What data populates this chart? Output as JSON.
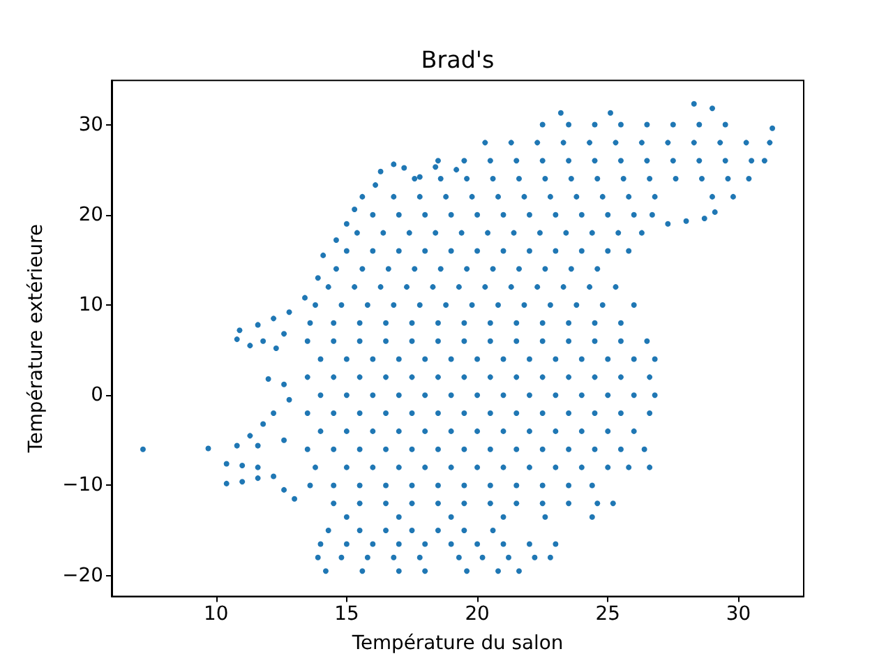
{
  "chart_data": {
    "type": "scatter",
    "title": "Brad's",
    "xlabel": "Température du salon",
    "ylabel": "Température extérieure",
    "color": "#1f77b4",
    "marker": "circle",
    "xlim": [
      6.0,
      32.5
    ],
    "ylim": [
      -22.3,
      34.9
    ],
    "xticks": [
      10,
      15,
      20,
      25,
      30
    ],
    "yticks": [
      -20,
      -10,
      0,
      10,
      20,
      30
    ],
    "x": [
      7.2,
      9.7,
      10.8,
      10.4,
      11.0,
      11.6,
      10.4,
      11.0,
      11.6,
      12.2,
      12.6,
      13.0,
      11.3,
      11.8,
      12.2,
      12.6,
      11.6,
      12.8,
      12.0,
      12.6,
      10.8,
      11.3,
      11.8,
      12.3,
      12.6,
      10.9,
      11.6,
      12.2,
      12.8,
      13.4,
      13.9,
      14.1,
      14.6,
      15.0,
      15.3,
      15.6,
      16.1,
      16.3,
      16.8,
      17.2,
      17.8,
      18.4,
      19.2,
      14.2,
      15.6,
      17.0,
      18.0,
      19.6,
      20.8,
      21.6,
      13.9,
      14.8,
      15.8,
      16.8,
      17.8,
      19.3,
      20.2,
      21.2,
      22.2,
      22.8,
      14.0,
      15.0,
      16.0,
      17.0,
      18.0,
      19.0,
      20.0,
      21.0,
      22.0,
      23.0,
      14.3,
      15.5,
      16.5,
      17.5,
      18.5,
      19.5,
      20.6,
      15.0,
      17.0,
      19.0,
      21.0,
      22.6,
      24.4,
      14.5,
      15.5,
      16.5,
      17.5,
      18.5,
      19.5,
      20.5,
      21.5,
      22.5,
      23.5,
      24.6,
      25.2,
      13.6,
      14.5,
      15.5,
      16.5,
      17.5,
      18.5,
      19.5,
      20.5,
      21.5,
      22.5,
      23.5,
      24.4,
      13.8,
      15.0,
      16.0,
      17.0,
      18.0,
      19.0,
      20.0,
      21.0,
      22.0,
      23.0,
      24.0,
      25.0,
      25.8,
      26.6,
      13.5,
      14.5,
      15.5,
      16.5,
      17.5,
      18.5,
      19.5,
      20.5,
      21.5,
      22.5,
      23.5,
      24.5,
      25.5,
      26.4,
      14.0,
      15.0,
      16.0,
      17.0,
      18.0,
      19.0,
      20.0,
      21.0,
      22.0,
      23.0,
      24.0,
      25.0,
      26.0,
      13.5,
      14.5,
      15.5,
      16.5,
      17.5,
      18.5,
      19.5,
      20.5,
      21.5,
      22.5,
      23.5,
      24.5,
      25.5,
      26.6,
      14.0,
      15.0,
      16.0,
      17.0,
      18.0,
      19.0,
      20.0,
      21.0,
      22.0,
      23.0,
      24.0,
      25.0,
      26.0,
      26.8,
      13.5,
      14.5,
      15.5,
      16.5,
      17.5,
      18.5,
      19.5,
      20.5,
      21.5,
      22.5,
      23.5,
      24.5,
      25.5,
      26.6,
      14.0,
      15.0,
      16.0,
      17.0,
      18.0,
      19.0,
      20.0,
      21.0,
      22.0,
      23.0,
      24.0,
      25.0,
      26.0,
      26.8,
      13.5,
      14.5,
      15.5,
      16.5,
      17.5,
      18.5,
      19.5,
      20.5,
      21.5,
      22.5,
      23.5,
      24.5,
      25.5,
      26.5,
      13.6,
      14.5,
      15.5,
      16.5,
      17.5,
      18.5,
      19.5,
      20.5,
      21.5,
      22.5,
      23.5,
      24.5,
      25.5,
      13.8,
      14.8,
      15.8,
      16.8,
      17.8,
      18.8,
      19.8,
      20.8,
      21.8,
      22.8,
      23.8,
      24.8,
      26.0,
      14.3,
      15.3,
      16.3,
      17.3,
      18.3,
      19.3,
      20.3,
      21.3,
      22.3,
      23.3,
      24.3,
      25.3,
      14.6,
      15.6,
      16.6,
      17.6,
      18.6,
      19.6,
      20.6,
      21.6,
      22.6,
      23.6,
      24.6,
      15.0,
      16.0,
      17.0,
      18.0,
      19.0,
      20.0,
      21.0,
      22.0,
      23.0,
      24.0,
      25.0,
      25.8,
      15.4,
      16.4,
      17.4,
      18.4,
      19.4,
      20.4,
      21.4,
      22.4,
      23.4,
      24.4,
      25.4,
      26.3,
      16.0,
      17.0,
      18.0,
      19.0,
      20.0,
      21.0,
      22.0,
      23.0,
      24.0,
      25.0,
      26.0,
      26.7,
      27.3,
      28.0,
      28.7,
      29.1,
      16.8,
      17.8,
      18.8,
      19.8,
      20.8,
      21.8,
      22.8,
      23.8,
      24.8,
      25.8,
      26.8,
      29.0,
      29.8,
      17.6,
      18.6,
      19.6,
      20.6,
      21.6,
      22.6,
      23.6,
      24.6,
      25.6,
      26.6,
      27.6,
      28.6,
      29.6,
      30.4,
      18.5,
      19.5,
      20.5,
      21.5,
      22.5,
      23.5,
      24.5,
      25.5,
      26.5,
      27.5,
      28.5,
      29.5,
      30.5,
      31.0,
      20.3,
      21.3,
      22.3,
      23.3,
      24.3,
      25.3,
      26.3,
      27.3,
      28.3,
      29.3,
      30.3,
      31.2,
      22.5,
      23.5,
      24.5,
      25.5,
      26.5,
      27.5,
      28.5,
      29.5,
      31.3,
      23.2,
      25.1,
      28.3,
      29.0
    ],
    "values": [
      -6.0,
      -5.9,
      -5.6,
      -7.6,
      -7.8,
      -8.0,
      -9.8,
      -9.6,
      -9.2,
      -9.0,
      -10.5,
      -11.5,
      -4.5,
      -3.2,
      -2.0,
      -5.0,
      -5.6,
      -0.5,
      1.8,
      1.2,
      6.2,
      5.5,
      6.0,
      5.2,
      6.8,
      7.2,
      7.8,
      8.5,
      9.2,
      10.8,
      13.0,
      15.5,
      17.2,
      19.0,
      20.6,
      22.0,
      23.3,
      24.8,
      25.6,
      25.2,
      24.2,
      25.3,
      25.0,
      -19.5,
      -19.5,
      -19.5,
      -19.5,
      -19.5,
      -19.5,
      -19.5,
      -18,
      -18,
      -18,
      -18,
      -18,
      -18,
      -18,
      -18,
      -18,
      -18,
      -16.5,
      -16.5,
      -16.5,
      -16.5,
      -16.5,
      -16.5,
      -16.5,
      -16.5,
      -16.5,
      -16.5,
      -15,
      -15,
      -15,
      -15,
      -15,
      -15,
      -15,
      -13.5,
      -13.5,
      -13.5,
      -13.5,
      -13.5,
      -13.5,
      -12,
      -12,
      -12,
      -12,
      -12,
      -12,
      -12,
      -12,
      -12,
      -12,
      -12,
      -12,
      -10,
      -10,
      -10,
      -10,
      -10,
      -10,
      -10,
      -10,
      -10,
      -10,
      -10,
      -10,
      -8,
      -8,
      -8,
      -8,
      -8,
      -8,
      -8,
      -8,
      -8,
      -8,
      -8,
      -8,
      -8,
      -8,
      -6,
      -6,
      -6,
      -6,
      -6,
      -6,
      -6,
      -6,
      -6,
      -6,
      -6,
      -6,
      -6,
      -6,
      -4,
      -4,
      -4,
      -4,
      -4,
      -4,
      -4,
      -4,
      -4,
      -4,
      -4,
      -4,
      -4,
      -2,
      -2,
      -2,
      -2,
      -2,
      -2,
      -2,
      -2,
      -2,
      -2,
      -2,
      -2,
      -2,
      -2,
      0,
      0,
      0,
      0,
      0,
      0,
      0,
      0,
      0,
      0,
      0,
      0,
      0,
      0,
      2,
      2,
      2,
      2,
      2,
      2,
      2,
      2,
      2,
      2,
      2,
      2,
      2,
      2,
      4,
      4,
      4,
      4,
      4,
      4,
      4,
      4,
      4,
      4,
      4,
      4,
      4,
      4,
      6,
      6,
      6,
      6,
      6,
      6,
      6,
      6,
      6,
      6,
      6,
      6,
      6,
      6,
      8,
      8,
      8,
      8,
      8,
      8,
      8,
      8,
      8,
      8,
      8,
      8,
      8,
      10,
      10,
      10,
      10,
      10,
      10,
      10,
      10,
      10,
      10,
      10,
      10,
      10,
      12,
      12,
      12,
      12,
      12,
      12,
      12,
      12,
      12,
      12,
      12,
      12,
      14,
      14,
      14,
      14,
      14,
      14,
      14,
      14,
      14,
      14,
      14,
      16,
      16,
      16,
      16,
      16,
      16,
      16,
      16,
      16,
      16,
      16,
      16,
      18,
      18,
      18,
      18,
      18,
      18,
      18,
      18,
      18,
      18,
      18,
      18,
      20,
      20,
      20,
      20,
      20,
      20,
      20,
      20,
      20,
      20,
      20,
      20,
      19.0,
      19.3,
      19.6,
      20.3,
      22,
      22,
      22,
      22,
      22,
      22,
      22,
      22,
      22,
      22,
      22,
      22,
      22,
      24,
      24,
      24,
      24,
      24,
      24,
      24,
      24,
      24,
      24,
      24,
      24,
      24,
      24,
      26,
      26,
      26,
      26,
      26,
      26,
      26,
      26,
      26,
      26,
      26,
      26,
      26,
      26,
      28,
      28,
      28,
      28,
      28,
      28,
      28,
      28,
      28,
      28,
      28,
      28,
      30,
      30,
      30,
      30,
      30,
      30,
      30,
      30,
      29.6,
      31.3,
      31.3,
      32.3,
      31.8
    ]
  }
}
